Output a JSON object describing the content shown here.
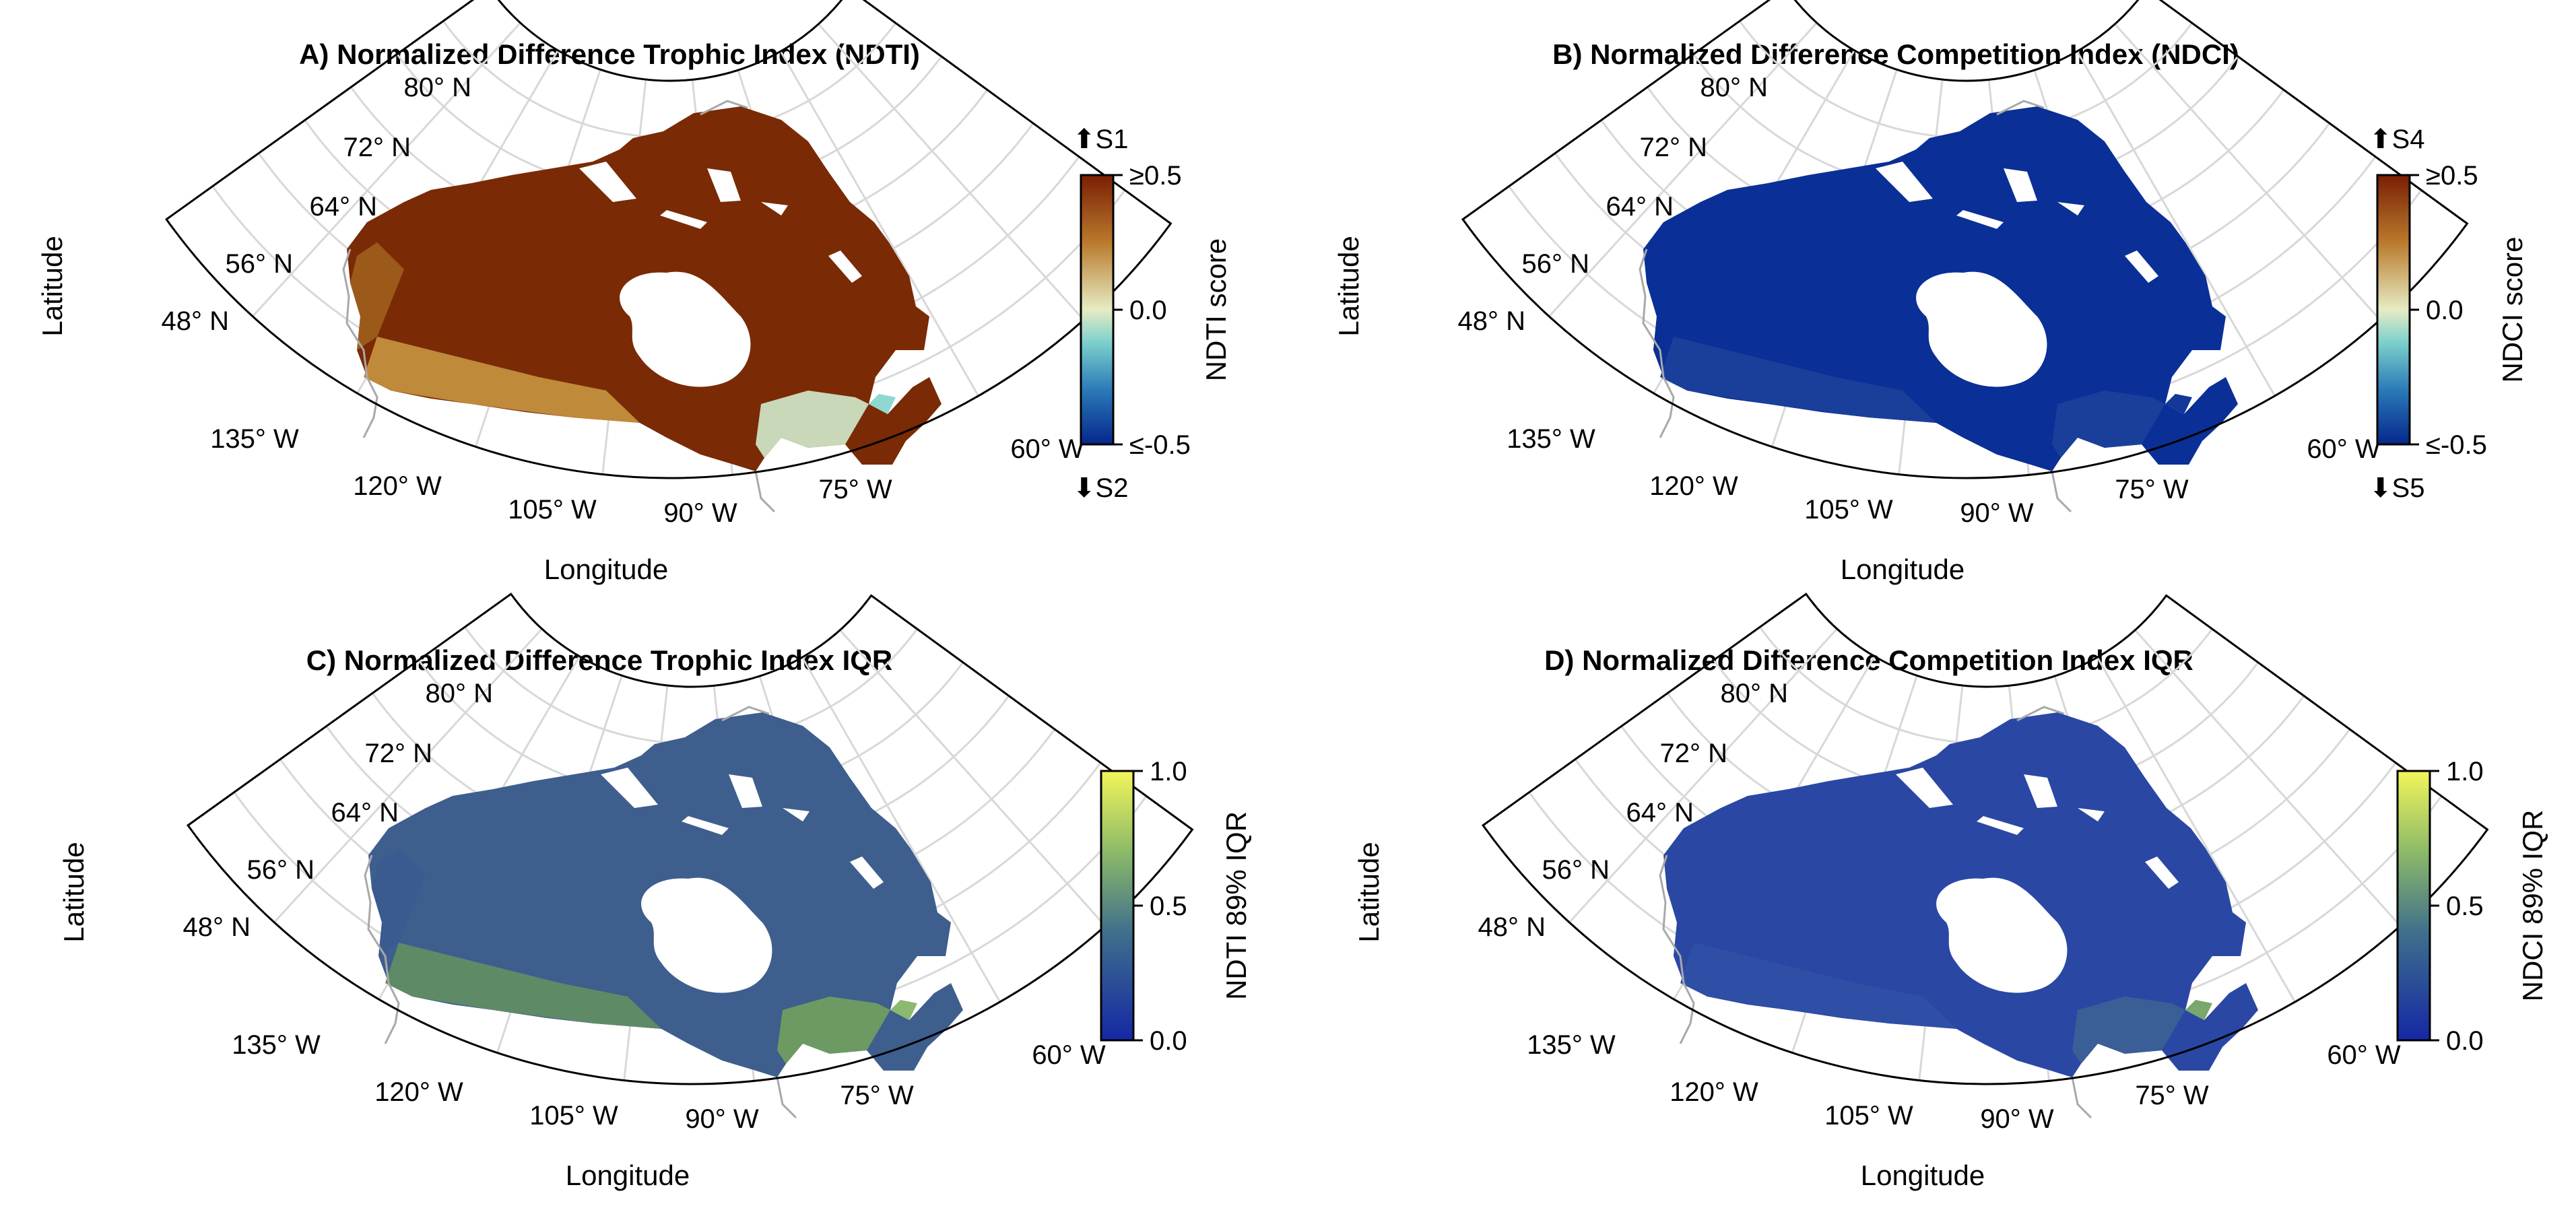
{
  "panels": [
    {
      "id": "A",
      "title": "A) Normalized Difference Trophic Index (NDTI)",
      "xlabel": "Longitude",
      "ylabel": "Latitude",
      "lat_ticks": [
        "80° N",
        "72° N",
        "64° N",
        "56° N",
        "48° N"
      ],
      "lon_ticks": [
        "135° W",
        "120° W",
        "105° W",
        "90° W",
        "75° W",
        "60° W"
      ],
      "colorbar": {
        "label": "NDTI score",
        "type": "diverging",
        "ticks": [
          "≥0.5",
          "0.0",
          "≤-0.5"
        ],
        "top_annotation": "⬆S1",
        "bottom_annotation": "⬇S2"
      },
      "map_colors": {
        "dominant": "#7a2a05",
        "south": "#bf8a3a",
        "west": "#9c5a1a",
        "east": "#c8d8b8",
        "accent": "#8fd8d0"
      }
    },
    {
      "id": "B",
      "title": "B) Normalized Difference Competition Index (NDCI)",
      "xlabel": "Longitude",
      "ylabel": "Latitude",
      "lat_ticks": [
        "80° N",
        "72° N",
        "64° N",
        "56° N",
        "48° N"
      ],
      "lon_ticks": [
        "135° W",
        "120° W",
        "105° W",
        "90° W",
        "75° W",
        "60° W"
      ],
      "colorbar": {
        "label": "NDCI score",
        "type": "diverging",
        "ticks": [
          "≥0.5",
          "0.0",
          "≤-0.5"
        ],
        "top_annotation": "⬆S4",
        "bottom_annotation": "⬇S5"
      },
      "map_colors": {
        "dominant": "#0a2f96",
        "south": "#1a3f9a",
        "west": "#0a2f96",
        "east": "#1a3f9a",
        "accent": "#12389a"
      }
    },
    {
      "id": "C",
      "title": "C) Normalized Difference Trophic Index IQR",
      "xlabel": "Longitude",
      "ylabel": "Latitude",
      "lat_ticks": [
        "80° N",
        "72° N",
        "64° N",
        "56° N",
        "48° N"
      ],
      "lon_ticks": [
        "135° W",
        "120° W",
        "105° W",
        "90° W",
        "75° W",
        "60° W"
      ],
      "colorbar": {
        "label": "NDTI 89% IQR",
        "type": "sequential",
        "ticks": [
          "1.0",
          "0.5",
          "0.0"
        ]
      },
      "map_colors": {
        "dominant": "#3e5e8e",
        "south": "#5f8a66",
        "west": "#3a5a90",
        "east": "#6c9a62",
        "accent": "#8cb870"
      }
    },
    {
      "id": "D",
      "title": "D) Normalized Difference Competition Index IQR",
      "xlabel": "Longitude",
      "ylabel": "Latitude",
      "lat_ticks": [
        "80° N",
        "72° N",
        "64° N",
        "56° N",
        "48° N"
      ],
      "lon_ticks": [
        "135° W",
        "120° W",
        "105° W",
        "90° W",
        "75° W",
        "60° W"
      ],
      "colorbar": {
        "label": "NDCI 89% IQR",
        "type": "sequential",
        "ticks": [
          "1.0",
          "0.5",
          "0.0"
        ]
      },
      "map_colors": {
        "dominant": "#2a47a4",
        "south": "#2f4fa6",
        "west": "#2a47a4",
        "east": "#3a5f96",
        "accent": "#78a86c"
      }
    }
  ]
}
